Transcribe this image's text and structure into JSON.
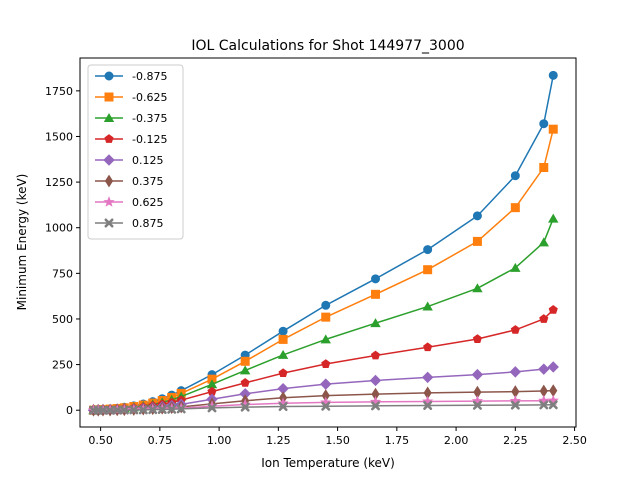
{
  "chart_data": {
    "type": "line",
    "title": "IOL Calculations for Shot 144977_3000",
    "xlabel": "Ion Temperature (keV)",
    "ylabel": "Minimum Energy (keV)",
    "xlim": [
      0.413,
      2.506
    ],
    "ylim": [
      -92,
      1930
    ],
    "xticks": [
      0.5,
      0.75,
      1.0,
      1.25,
      1.5,
      1.75,
      2.0,
      2.25,
      2.5
    ],
    "xtick_labels": [
      "0.50",
      "0.75",
      "1.00",
      "1.25",
      "1.50",
      "1.75",
      "2.00",
      "2.25",
      "2.50"
    ],
    "yticks": [
      0,
      250,
      500,
      750,
      1000,
      1250,
      1500,
      1750
    ],
    "ytick_labels": [
      "0",
      "250",
      "500",
      "750",
      "1000",
      "1250",
      "1500",
      "1750"
    ],
    "legend_position": "top-left",
    "x": [
      0.47,
      0.49,
      0.51,
      0.54,
      0.57,
      0.6,
      0.64,
      0.68,
      0.72,
      0.76,
      0.8,
      0.84,
      0.97,
      1.11,
      1.27,
      1.45,
      1.66,
      1.88,
      2.09,
      2.25,
      2.37,
      2.41
    ],
    "series": [
      {
        "name": "-0.875",
        "color": "#1f77b4",
        "marker": "circle",
        "values": [
          0,
          2,
          4,
          7,
          11,
          16,
          24,
          34,
          47,
          63,
          83,
          107,
          195,
          302,
          433,
          575,
          720,
          880,
          1065,
          1285,
          1570,
          1835
        ]
      },
      {
        "name": "-0.625",
        "color": "#ff7f0e",
        "marker": "square",
        "values": [
          0,
          2,
          3,
          6,
          9,
          13,
          20,
          28,
          39,
          53,
          70,
          92,
          170,
          268,
          388,
          510,
          635,
          770,
          925,
          1110,
          1330,
          1540
        ]
      },
      {
        "name": "-0.375",
        "color": "#2ca02c",
        "marker": "triangle",
        "values": [
          0,
          1,
          3,
          5,
          7,
          11,
          16,
          23,
          32,
          43,
          57,
          75,
          142,
          218,
          303,
          388,
          477,
          568,
          668,
          780,
          920,
          1050
        ]
      },
      {
        "name": "-0.125",
        "color": "#d62728",
        "marker": "pentagon",
        "values": [
          0,
          1,
          2,
          4,
          6,
          8,
          12,
          17,
          24,
          32,
          42,
          55,
          102,
          150,
          203,
          253,
          300,
          345,
          390,
          440,
          500,
          550
        ]
      },
      {
        "name": "0.125",
        "color": "#9467bd",
        "marker": "diamond",
        "values": [
          0,
          1,
          1,
          2,
          3,
          5,
          7,
          10,
          14,
          19,
          25,
          32,
          60,
          90,
          118,
          143,
          163,
          180,
          195,
          210,
          225,
          237
        ]
      },
      {
        "name": "0.375",
        "color": "#8c564b",
        "marker": "thin_diamond",
        "values": [
          0,
          0,
          1,
          1,
          2,
          3,
          4,
          6,
          8,
          11,
          14,
          18,
          35,
          52,
          68,
          80,
          88,
          95,
          99,
          102,
          105,
          107
        ]
      },
      {
        "name": "0.625",
        "color": "#e377c2",
        "marker": "star",
        "values": [
          0,
          0,
          0,
          1,
          1,
          2,
          3,
          4,
          5,
          7,
          9,
          11,
          22,
          31,
          38,
          43,
          46,
          48,
          50,
          51,
          52,
          53
        ]
      },
      {
        "name": "0.875",
        "color": "#7f7f7f",
        "marker": "x",
        "values": [
          0,
          0,
          0,
          0,
          1,
          1,
          2,
          2,
          3,
          4,
          5,
          7,
          13,
          17,
          20,
          22,
          24,
          26,
          27,
          28,
          29,
          30
        ]
      }
    ]
  }
}
